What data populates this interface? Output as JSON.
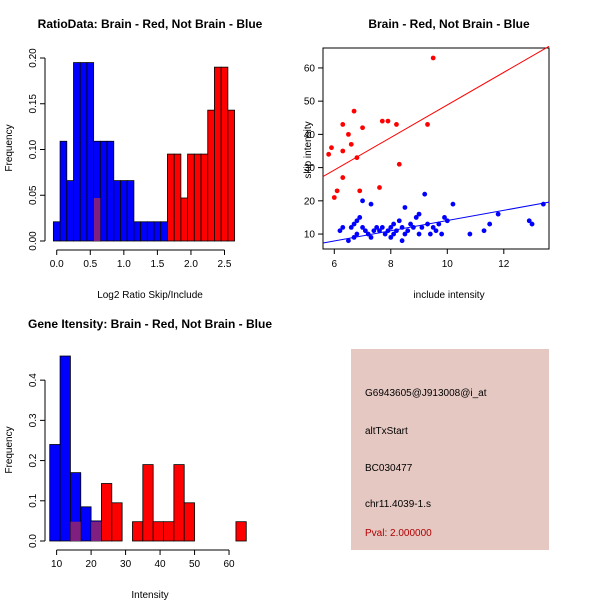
{
  "colors": {
    "brain": "#ff0000",
    "notbrain": "#0000ff",
    "overlap": "#7f2080",
    "panel_bg": "#e5c8c2",
    "pval": "#b00000"
  },
  "chart_data": [
    {
      "type": "bar",
      "title": "RatioData: Brain - Red, Not Brain - Blue",
      "xlabel": "Log2 Ratio Skip/Include",
      "ylabel": "Frequency",
      "xlim": [
        -0.13,
        2.85
      ],
      "ylim": [
        0,
        0.2
      ],
      "xticks": [
        0.0,
        0.5,
        1.0,
        1.5,
        2.0,
        2.5
      ],
      "xtick_labels": [
        "0.0",
        "0.5",
        "1.0",
        "1.5",
        "2.0",
        "2.5"
      ],
      "yticks": [
        0.0,
        0.05,
        0.1,
        0.15,
        0.2
      ],
      "ytick_labels": [
        "0.00",
        "0.05",
        "0.10",
        "0.15",
        "0.20"
      ],
      "series": [
        {
          "name": "Not Brain",
          "color": "#0000ff",
          "bins": [
            [
              -0.05,
              0.05,
              0.021
            ],
            [
              0.05,
              0.15,
              0.109
            ],
            [
              0.15,
              0.25,
              0.066
            ],
            [
              0.25,
              0.35,
              0.195
            ],
            [
              0.35,
              0.45,
              0.195
            ],
            [
              0.45,
              0.55,
              0.195
            ],
            [
              0.55,
              0.65,
              0.109
            ],
            [
              0.65,
              0.75,
              0.109
            ],
            [
              0.75,
              0.85,
              0.109
            ],
            [
              0.85,
              0.95,
              0.066
            ],
            [
              0.95,
              1.05,
              0.066
            ],
            [
              1.05,
              1.15,
              0.066
            ],
            [
              1.15,
              1.25,
              0.021
            ],
            [
              1.25,
              1.35,
              0.021
            ],
            [
              1.35,
              1.45,
              0.021
            ],
            [
              1.45,
              1.55,
              0.021
            ],
            [
              1.55,
              1.65,
              0.021
            ]
          ]
        },
        {
          "name": "Brain",
          "color": "#ff0000",
          "bins": [
            [
              0.55,
              0.65,
              0.047
            ],
            [
              1.65,
              1.75,
              0.095
            ],
            [
              1.75,
              1.85,
              0.095
            ],
            [
              1.85,
              1.95,
              0.047
            ],
            [
              1.95,
              2.05,
              0.095
            ],
            [
              2.05,
              2.15,
              0.095
            ],
            [
              2.15,
              2.25,
              0.095
            ],
            [
              2.25,
              2.35,
              0.143
            ],
            [
              2.35,
              2.45,
              0.19
            ],
            [
              2.45,
              2.55,
              0.19
            ],
            [
              2.55,
              2.65,
              0.143
            ]
          ]
        }
      ]
    },
    {
      "type": "scatter",
      "title": "Brain - Red, Not Brain - Blue",
      "xlabel": "include intensity",
      "ylabel": "skip intensity",
      "xlim": [
        5.6,
        13.6
      ],
      "ylim": [
        5.5,
        66
      ],
      "xticks": [
        6,
        8,
        10,
        12
      ],
      "yticks": [
        10,
        20,
        30,
        40,
        50,
        60
      ],
      "series": [
        {
          "name": "Brain",
          "color": "#ff0000",
          "points": [
            [
              5.8,
              34
            ],
            [
              5.9,
              36
            ],
            [
              6.0,
              21
            ],
            [
              6.1,
              23
            ],
            [
              6.3,
              43
            ],
            [
              6.3,
              27
            ],
            [
              6.3,
              35
            ],
            [
              6.5,
              40
            ],
            [
              6.6,
              37
            ],
            [
              6.7,
              47
            ],
            [
              6.8,
              33
            ],
            [
              6.9,
              23
            ],
            [
              7.0,
              42
            ],
            [
              7.6,
              24
            ],
            [
              7.7,
              44
            ],
            [
              7.9,
              44
            ],
            [
              8.2,
              43
            ],
            [
              8.3,
              31
            ],
            [
              9.3,
              43
            ],
            [
              9.5,
              63
            ]
          ],
          "fit": [
            [
              5.6,
              27.3
            ],
            [
              13.6,
              66.5
            ]
          ]
        },
        {
          "name": "Not Brain",
          "color": "#0000ff",
          "points": [
            [
              6.2,
              11
            ],
            [
              6.3,
              12
            ],
            [
              6.5,
              8
            ],
            [
              6.6,
              12
            ],
            [
              6.7,
              9
            ],
            [
              6.7,
              13
            ],
            [
              6.8,
              14
            ],
            [
              6.8,
              10
            ],
            [
              6.9,
              15
            ],
            [
              7.0,
              12
            ],
            [
              7.0,
              20
            ],
            [
              7.1,
              11
            ],
            [
              7.2,
              10
            ],
            [
              7.3,
              19
            ],
            [
              7.3,
              9
            ],
            [
              7.4,
              11
            ],
            [
              7.5,
              12
            ],
            [
              7.6,
              11
            ],
            [
              7.7,
              12
            ],
            [
              7.8,
              10
            ],
            [
              7.9,
              11
            ],
            [
              8.0,
              12
            ],
            [
              8.0,
              9
            ],
            [
              8.1,
              13
            ],
            [
              8.1,
              10
            ],
            [
              8.2,
              11
            ],
            [
              8.3,
              14
            ],
            [
              8.4,
              12
            ],
            [
              8.4,
              8
            ],
            [
              8.5,
              18
            ],
            [
              8.5,
              10
            ],
            [
              8.6,
              11
            ],
            [
              8.7,
              13
            ],
            [
              8.8,
              12
            ],
            [
              8.9,
              15
            ],
            [
              9.0,
              10
            ],
            [
              9.0,
              16
            ],
            [
              9.1,
              12
            ],
            [
              9.2,
              22
            ],
            [
              9.3,
              13
            ],
            [
              9.4,
              10
            ],
            [
              9.5,
              12
            ],
            [
              9.6,
              11
            ],
            [
              9.7,
              13
            ],
            [
              9.8,
              10
            ],
            [
              9.9,
              15
            ],
            [
              10.0,
              14
            ],
            [
              10.2,
              19
            ],
            [
              10.8,
              10
            ],
            [
              11.3,
              11
            ],
            [
              11.5,
              13
            ],
            [
              11.8,
              16
            ],
            [
              12.9,
              14
            ],
            [
              13.0,
              13
            ],
            [
              13.4,
              19
            ]
          ],
          "fit": [
            [
              5.6,
              7.3
            ],
            [
              13.6,
              19.6
            ]
          ]
        }
      ]
    },
    {
      "type": "bar",
      "title": "Gene Itensity: Brain - Red, Not Brain - Blue",
      "xlabel": "Intensity",
      "ylabel": "Frequency",
      "xlim": [
        7.5,
        65.5
      ],
      "ylim": [
        0,
        0.47
      ],
      "xticks": [
        10,
        20,
        30,
        40,
        50,
        60
      ],
      "xtick_labels": [
        "10",
        "20",
        "30",
        "40",
        "50",
        "60"
      ],
      "yticks": [
        0.0,
        0.1,
        0.2,
        0.3,
        0.4
      ],
      "ytick_labels": [
        "0.0",
        "0.1",
        "0.2",
        "0.3",
        "0.4"
      ],
      "series": [
        {
          "name": "Not Brain",
          "color": "#0000ff",
          "bins": [
            [
              8,
              11,
              0.24
            ],
            [
              11,
              14,
              0.46
            ],
            [
              14,
              17,
              0.17
            ],
            [
              17,
              20,
              0.085
            ],
            [
              20,
              23,
              0.05
            ]
          ]
        },
        {
          "name": "Brain",
          "color": "#ff0000",
          "bins": [
            [
              14,
              17,
              0.048
            ],
            [
              20,
              23,
              0.048
            ],
            [
              23,
              26,
              0.143
            ],
            [
              26,
              29,
              0.095
            ],
            [
              29,
              32,
              0.0
            ],
            [
              32,
              35,
              0.048
            ],
            [
              35,
              38,
              0.19
            ],
            [
              38,
              41,
              0.048
            ],
            [
              41,
              44,
              0.048
            ],
            [
              44,
              47,
              0.19
            ],
            [
              47,
              50,
              0.095
            ],
            [
              62,
              65,
              0.048
            ]
          ]
        }
      ]
    }
  ],
  "info_panel": {
    "probe_id": "G6943605@J913008@i_at",
    "event_type": "altTxStart",
    "accession": "BC030477",
    "locus": "chr11.4039-1.s",
    "pval": "Pval: 2.000000"
  }
}
